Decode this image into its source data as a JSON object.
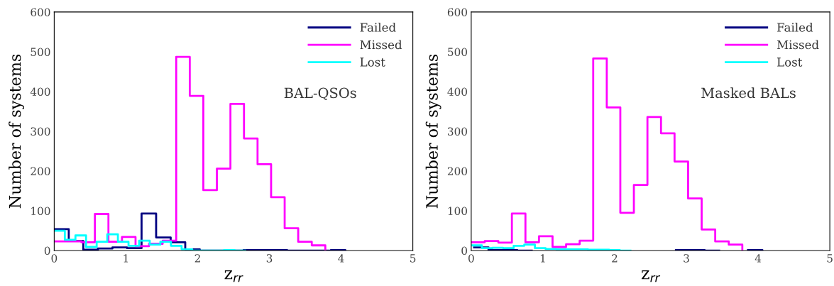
{
  "chart_data": [
    {
      "type": "step",
      "xlabel": "z$_{rr}$",
      "ylabel": "Number of systems",
      "annotations": [
        "BAL-QSOs"
      ],
      "xlim": [
        0,
        5
      ],
      "xticks": [
        0,
        1,
        2,
        3,
        4,
        5
      ],
      "ylim": [
        0,
        600
      ],
      "yticks": [
        0,
        100,
        200,
        300,
        400,
        500,
        600
      ],
      "legend": "top right",
      "series": [
        {
          "name": "Failed",
          "color": "#000080",
          "x": [
            0,
            0.203,
            0.406,
            0.609,
            0.812,
            1.015,
            1.218,
            1.421,
            1.624,
            1.827,
            2.03,
            2.233,
            2.436,
            2.639,
            2.842,
            3.045,
            3.248,
            3.451,
            3.654,
            3.857,
            4.06
          ],
          "values": [
            54,
            24,
            2,
            5,
            8,
            6,
            93,
            33,
            21,
            3,
            0,
            0,
            0,
            1,
            1,
            1,
            0,
            0,
            0,
            1,
            0
          ]
        },
        {
          "name": "Missed",
          "color": "#ff00ff",
          "x": [
            0,
            0.189,
            0.378,
            0.567,
            0.756,
            0.945,
            1.134,
            1.323,
            1.512,
            1.701,
            1.89,
            2.079,
            2.268,
            2.457,
            2.646,
            2.835,
            3.024,
            3.213,
            3.402,
            3.591,
            3.78
          ],
          "values": [
            23,
            23,
            21,
            92,
            22,
            34,
            11,
            17,
            25,
            487,
            389,
            152,
            206,
            369,
            282,
            217,
            134,
            56,
            22,
            13,
            0
          ]
        },
        {
          "name": "Lost",
          "color": "#00ffff",
          "x": [
            0,
            0.148,
            0.296,
            0.444,
            0.592,
            0.74,
            0.888,
            1.036,
            1.184,
            1.332,
            1.48,
            1.628,
            1.776,
            1.924,
            2.072,
            2.22,
            2.368,
            2.516,
            2.664
          ],
          "values": [
            50,
            27,
            38,
            9,
            22,
            41,
            22,
            12,
            25,
            15,
            22,
            12,
            3,
            0,
            0,
            0,
            1,
            0,
            0
          ]
        }
      ]
    },
    {
      "type": "step",
      "xlabel": "z$_{rr}$",
      "ylabel": "Number of systems",
      "annotations": [
        "Masked BALs"
      ],
      "xlim": [
        0,
        5
      ],
      "xticks": [
        0,
        1,
        2,
        3,
        4,
        5
      ],
      "ylim": [
        0,
        600
      ],
      "yticks": [
        0,
        100,
        200,
        300,
        400,
        500,
        600
      ],
      "legend": "top right",
      "series": [
        {
          "name": "Failed",
          "color": "#000080",
          "x": [
            0.04,
            0.241,
            0.442,
            0.643,
            0.844,
            1.045,
            1.246,
            1.447,
            1.648,
            1.849,
            2.05,
            2.251,
            2.452,
            2.653,
            2.854,
            3.055,
            3.256,
            3.457,
            3.658,
            3.859,
            4.06
          ],
          "values": [
            8,
            1,
            1,
            0,
            null,
            null,
            null,
            null,
            null,
            null,
            null,
            null,
            null,
            null,
            1,
            1,
            0,
            null,
            null,
            1,
            0
          ]
        },
        {
          "name": "Missed",
          "color": "#ff00ff",
          "x": [
            0,
            0.189,
            0.378,
            0.567,
            0.756,
            0.945,
            1.134,
            1.323,
            1.512,
            1.701,
            1.89,
            2.079,
            2.268,
            2.457,
            2.646,
            2.835,
            3.024,
            3.213,
            3.402,
            3.591,
            3.78
          ],
          "values": [
            21,
            24,
            20,
            93,
            21,
            36,
            9,
            16,
            25,
            483,
            360,
            95,
            165,
            336,
            295,
            224,
            131,
            53,
            23,
            15,
            0
          ]
        },
        {
          "name": "Lost",
          "color": "#00ffff",
          "x": [
            0,
            0.148,
            0.296,
            0.444,
            0.592,
            0.74,
            0.888,
            1.036,
            1.184,
            1.332,
            1.48,
            1.628,
            1.776,
            1.924,
            2.072,
            2.22
          ],
          "values": [
            13,
            6,
            7,
            6,
            12,
            15,
            6,
            4,
            3,
            3,
            3,
            2,
            2,
            1,
            0,
            0
          ]
        }
      ]
    }
  ]
}
